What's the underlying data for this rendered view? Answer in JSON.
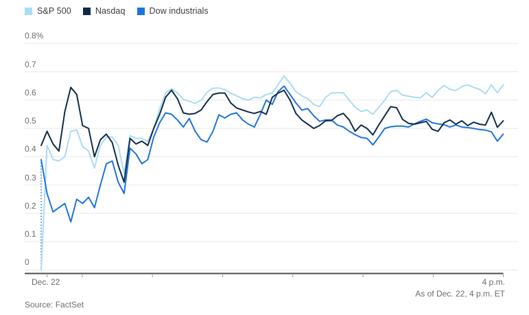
{
  "legend": {
    "items": [
      {
        "label": "S&P 500",
        "color": "#a9dbf5"
      },
      {
        "label": "Nasdaq",
        "color": "#0e2a47"
      },
      {
        "label": "Dow industrials",
        "color": "#1c73dd"
      }
    ]
  },
  "y_axis": {
    "tick_labels": [
      "0.8%",
      "0.7",
      "0.6",
      "0.5",
      "0.4",
      "0.3",
      "0.2",
      "0.1",
      "0"
    ],
    "tick_values": [
      0.8,
      0.7,
      0.6,
      0.5,
      0.4,
      0.3,
      0.2,
      0.1,
      0
    ]
  },
  "x_axis": {
    "left_label": "Dec. 22",
    "right_label": "4 p.m."
  },
  "asof_note": "As of Dec. 22, 4 p.m. ET",
  "source": "Source: FactSet",
  "colors": {
    "gridline": "#e8e8e8",
    "axis_line": "#4d4d4d",
    "tick_mark": "#999999"
  },
  "chart_data": {
    "type": "line",
    "title": "",
    "xlabel": "",
    "ylabel": "",
    "y_unit": "percent",
    "ylim": [
      0,
      0.8
    ],
    "x_start": "Dec. 22, 9:30 a.m.",
    "x_end": "4 p.m.",
    "x_interval_minutes": 5,
    "grid": "horizontal",
    "legend_position": "top-left",
    "note": "intraday % change; Dow series begins with a dotted vertical rise from 0",
    "series": [
      {
        "name": "S&P 500",
        "color": "#a9dbf5",
        "values": [
          0.0,
          0.44,
          0.39,
          0.385,
          0.4,
          0.49,
          0.495,
          0.435,
          0.42,
          0.36,
          0.44,
          0.47,
          0.47,
          0.44,
          0.34,
          0.475,
          0.465,
          0.465,
          0.455,
          0.5,
          0.57,
          0.625,
          0.64,
          0.625,
          0.603,
          0.596,
          0.588,
          0.6,
          0.628,
          0.642,
          0.643,
          0.637,
          0.625,
          0.615,
          0.605,
          0.6,
          0.61,
          0.608,
          0.62,
          0.625,
          0.655,
          0.685,
          0.66,
          0.63,
          0.615,
          0.605,
          0.585,
          0.577,
          0.61,
          0.625,
          0.626,
          0.626,
          0.6,
          0.575,
          0.56,
          0.565,
          0.55,
          0.575,
          0.6,
          0.63,
          0.635,
          0.618,
          0.614,
          0.61,
          0.608,
          0.626,
          0.61,
          0.635,
          0.652,
          0.638,
          0.634,
          0.648,
          0.654,
          0.645,
          0.638,
          0.622,
          0.654,
          0.626,
          0.654
        ]
      },
      {
        "name": "Nasdaq",
        "color": "#0e2a47",
        "values": [
          0.44,
          0.49,
          0.445,
          0.42,
          0.56,
          0.645,
          0.62,
          0.51,
          0.5,
          0.4,
          0.46,
          0.48,
          0.45,
          0.37,
          0.31,
          0.465,
          0.445,
          0.455,
          0.44,
          0.5,
          0.55,
          0.61,
          0.635,
          0.605,
          0.555,
          0.55,
          0.553,
          0.565,
          0.595,
          0.62,
          0.625,
          0.625,
          0.59,
          0.572,
          0.565,
          0.558,
          0.553,
          0.56,
          0.55,
          0.61,
          0.625,
          0.635,
          0.6,
          0.553,
          0.53,
          0.515,
          0.5,
          0.51,
          0.527,
          0.528,
          0.545,
          0.553,
          0.53,
          0.49,
          0.512,
          0.5,
          0.477,
          0.513,
          0.545,
          0.577,
          0.573,
          0.532,
          0.518,
          0.515,
          0.52,
          0.525,
          0.497,
          0.49,
          0.52,
          0.53,
          0.515,
          0.527,
          0.51,
          0.522,
          0.515,
          0.512,
          0.557,
          0.504,
          0.527
        ]
      },
      {
        "name": "Dow industrials",
        "color": "#1c73dd",
        "dotted_start_from": 0,
        "values": [
          0.39,
          0.27,
          0.205,
          0.22,
          0.235,
          0.17,
          0.25,
          0.235,
          0.257,
          0.22,
          0.3,
          0.375,
          0.385,
          0.31,
          0.27,
          0.43,
          0.41,
          0.375,
          0.39,
          0.47,
          0.52,
          0.555,
          0.55,
          0.53,
          0.505,
          0.535,
          0.49,
          0.46,
          0.452,
          0.49,
          0.548,
          0.537,
          0.55,
          0.555,
          0.53,
          0.515,
          0.505,
          0.55,
          0.6,
          0.585,
          0.63,
          0.65,
          0.62,
          0.59,
          0.565,
          0.57,
          0.545,
          0.525,
          0.53,
          0.53,
          0.512,
          0.505,
          0.49,
          0.478,
          0.468,
          0.465,
          0.442,
          0.47,
          0.5,
          0.506,
          0.508,
          0.508,
          0.505,
          0.516,
          0.525,
          0.533,
          0.52,
          0.516,
          0.513,
          0.505,
          0.512,
          0.505,
          0.503,
          0.5,
          0.496,
          0.494,
          0.488,
          0.455,
          0.48
        ]
      }
    ]
  }
}
